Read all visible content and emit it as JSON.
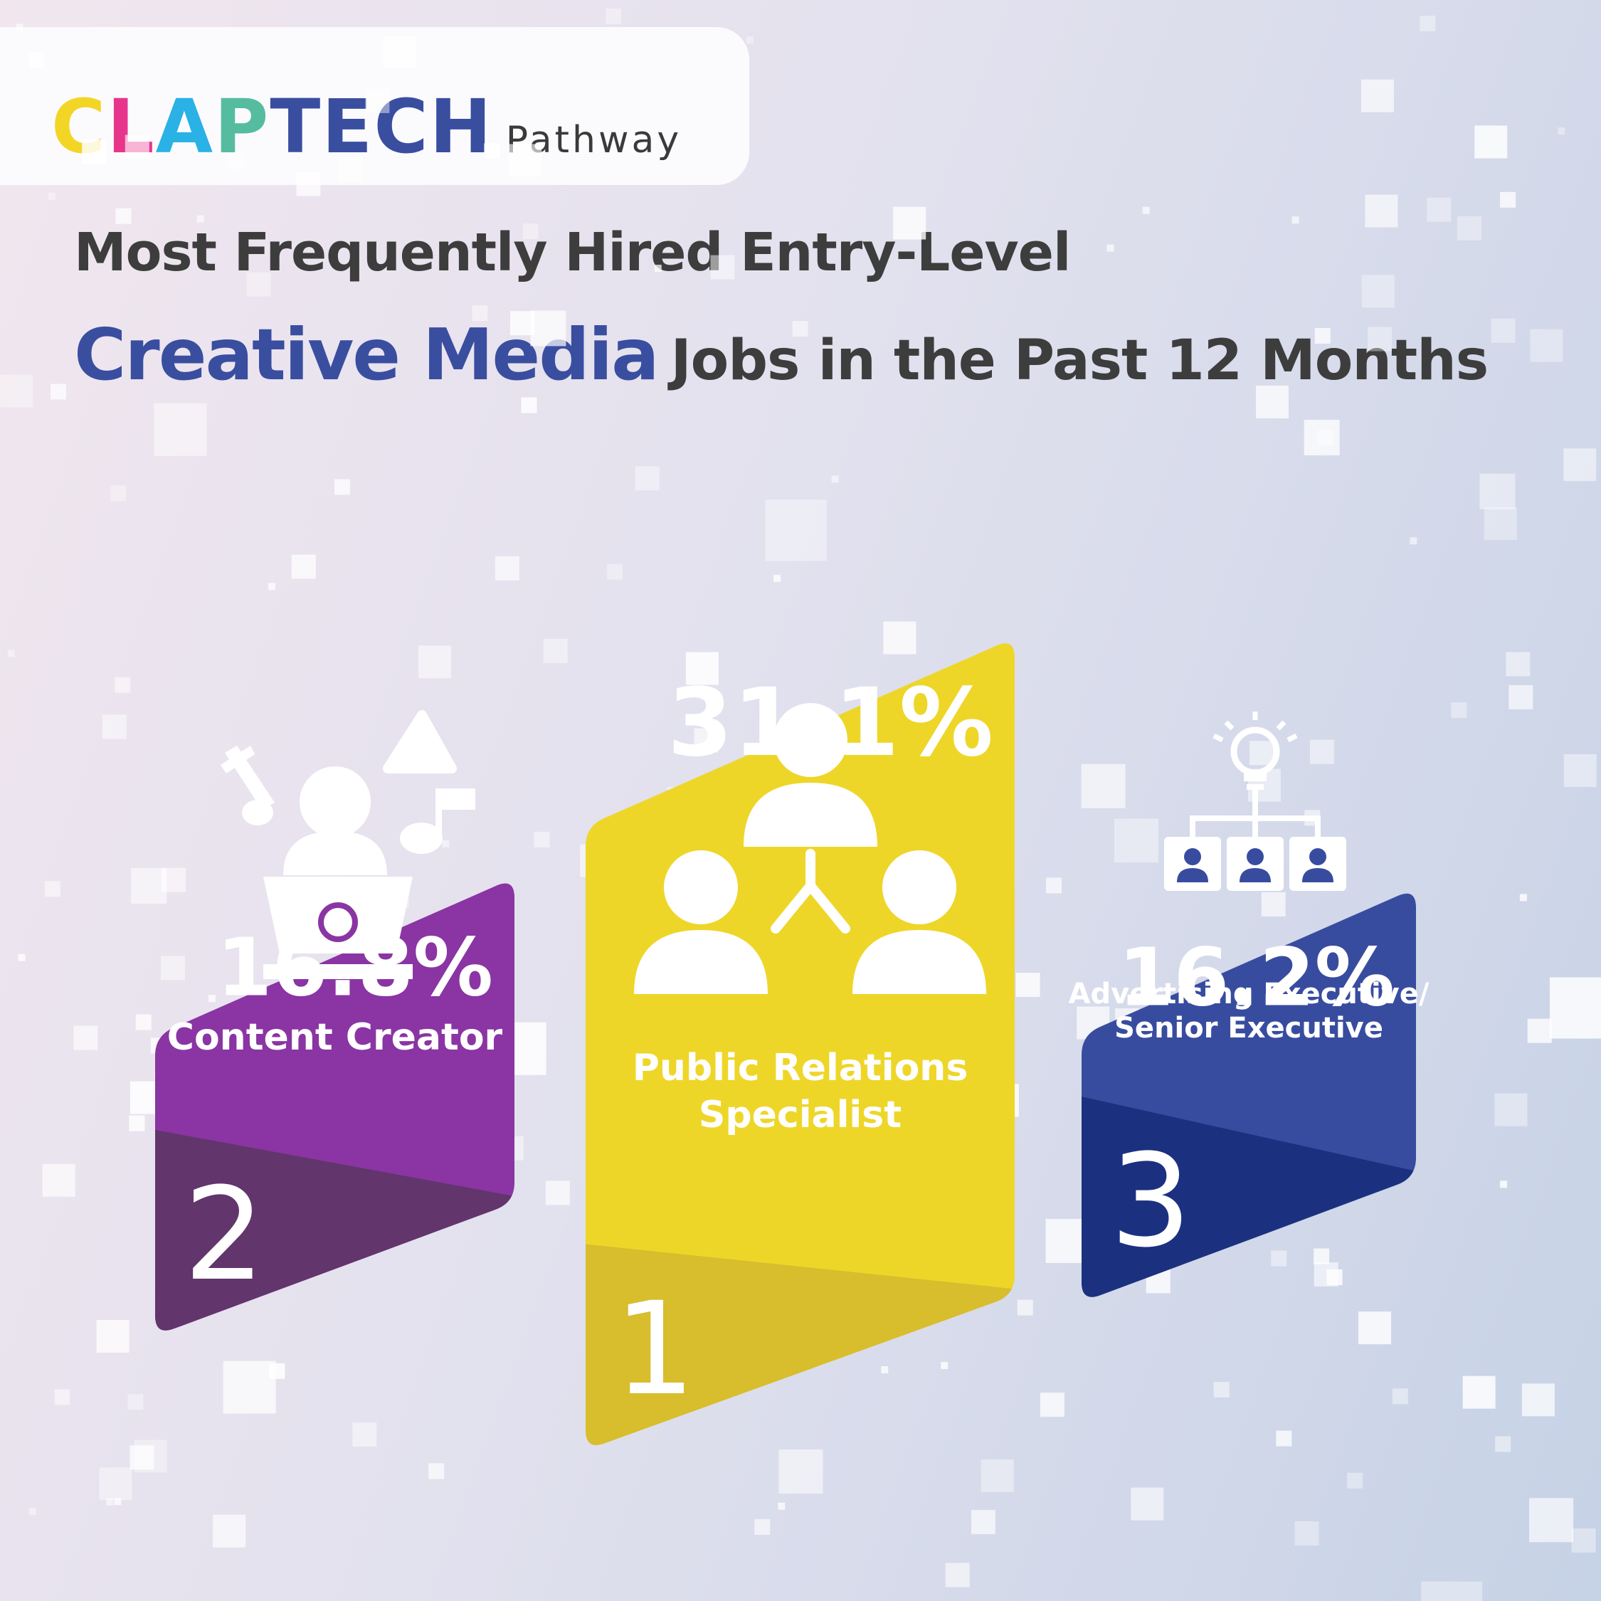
{
  "logo": {
    "letters": [
      {
        "char": "C",
        "color": "#f3d526"
      },
      {
        "char": "L",
        "color": "#e8358c"
      },
      {
        "char": "A",
        "color": "#2ab1e6"
      },
      {
        "char": "P",
        "color": "#56bca0"
      },
      {
        "char": "T",
        "color": "#3a4ea0"
      },
      {
        "char": "E",
        "color": "#3a4ea0"
      },
      {
        "char": "C",
        "color": "#3a4ea0"
      },
      {
        "char": "H",
        "color": "#3a4ea0"
      }
    ],
    "wordmark": "CLAPTECH",
    "sub": "Pathway"
  },
  "title": {
    "line1": "Most Frequently Hired Entry-Level",
    "highlight": "Creative Media",
    "rest": "Jobs in the Past 12 Months"
  },
  "colors": {
    "purple": "#8a35a3",
    "purple_dark": "#62356c",
    "yellow": "#eed629",
    "yellow_dark": "#d8bd2d",
    "blue": "#384c9f",
    "blue_dark": "#1b3180",
    "title_accent": "#3a4ea0",
    "title_text": "#3d3d3d"
  },
  "chart_data": {
    "type": "bar",
    "categories": [
      "Content Creator",
      "Public Relations Specialist",
      "Advertising Executive/ Senior Executive"
    ],
    "values": [
      16.8,
      31.1,
      16.2
    ],
    "value_labels": [
      "16.8%",
      "31.1%",
      "16.2%"
    ],
    "ranks": [
      "2",
      "1",
      "3"
    ],
    "label_lines": [
      [
        "Content Creator"
      ],
      [
        "Public Relations",
        "Specialist"
      ],
      [
        "Advertising Executive/",
        "Senior Executive"
      ]
    ],
    "icons": [
      "presenter-music-icon",
      "team-network-icon",
      "idea-org-chart-icon"
    ],
    "unit": "%"
  }
}
